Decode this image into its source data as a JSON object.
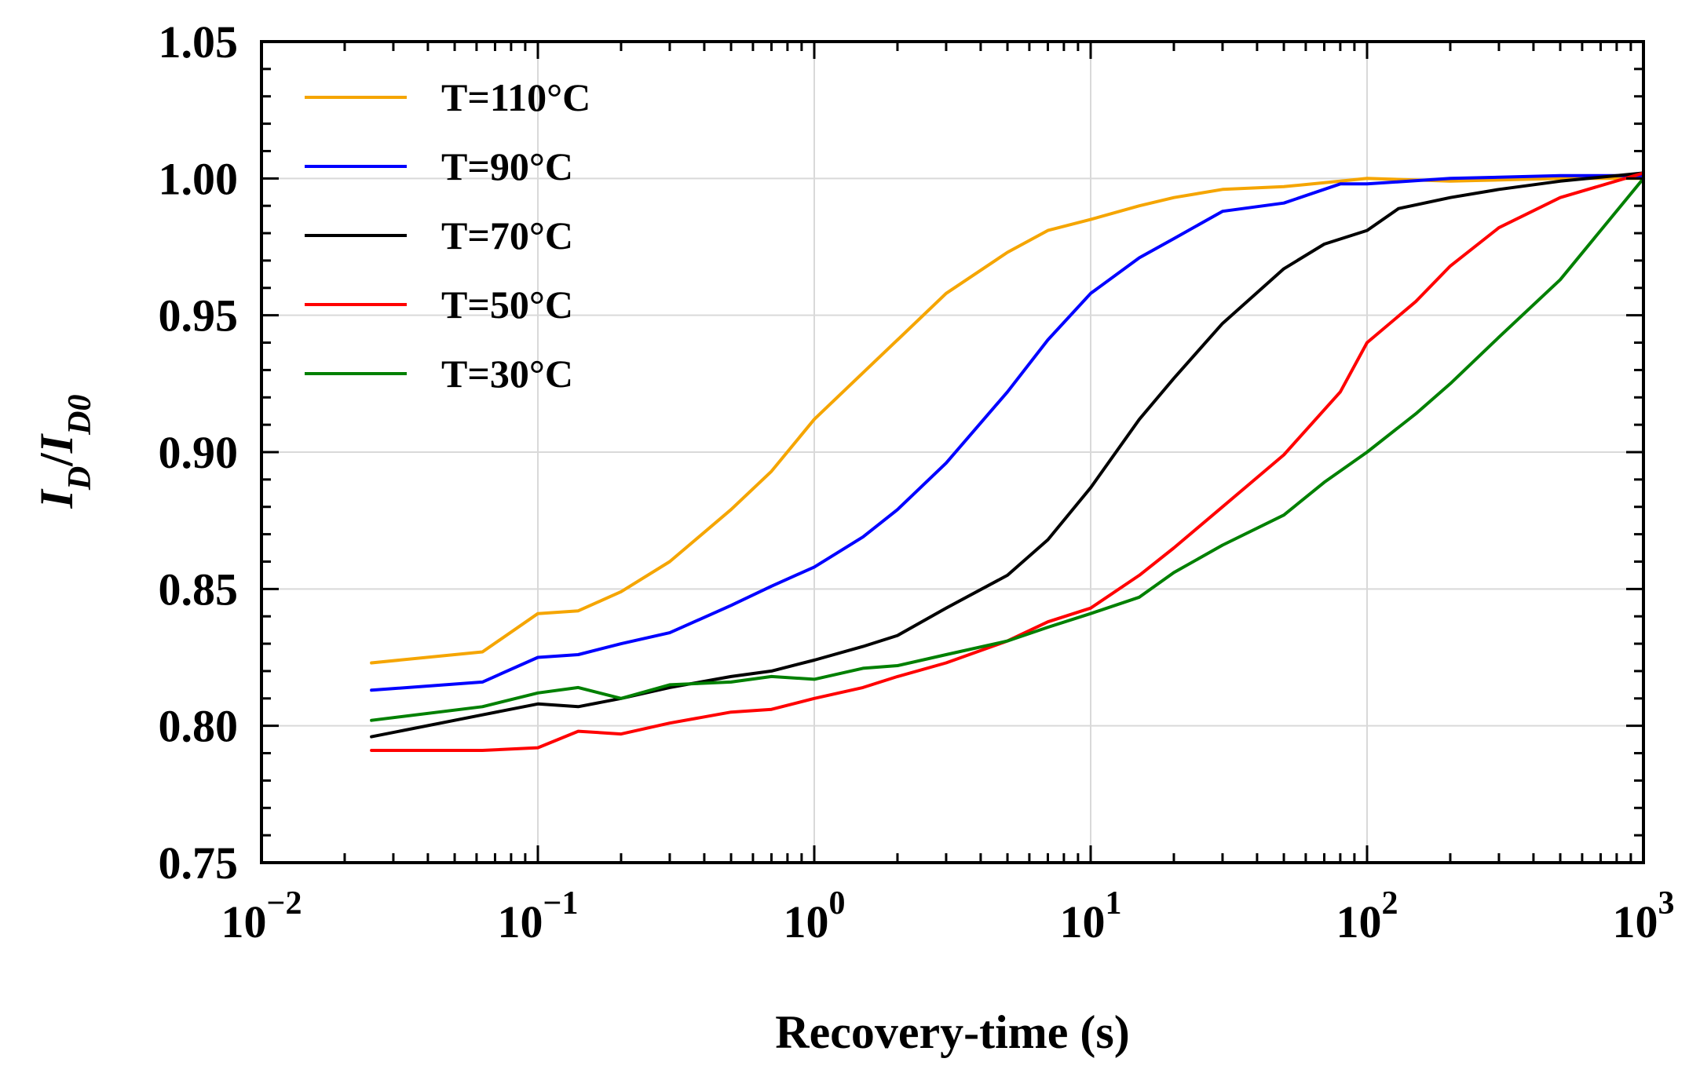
{
  "chart_data": {
    "type": "line",
    "xlabel": "Recovery-time (s)",
    "ylabel": {
      "base": "I",
      "sub": "D",
      "sep": "/",
      "base2": "I",
      "sub2": "D0"
    },
    "xscale": "log",
    "xlim": [
      0.01,
      1000
    ],
    "ylim": [
      0.75,
      1.05
    ],
    "grid": true,
    "legend_position": "top-left",
    "x_ticks": [
      {
        "base": "10",
        "exp": "−2"
      },
      {
        "base": "10",
        "exp": "−1"
      },
      {
        "base": "10",
        "exp": "0"
      },
      {
        "base": "10",
        "exp": "1"
      },
      {
        "base": "10",
        "exp": "2"
      },
      {
        "base": "10",
        "exp": "3"
      }
    ],
    "x_tick_values": [
      0.01,
      0.1,
      1,
      10,
      100,
      1000
    ],
    "y_ticks": [
      "0.75",
      "0.80",
      "0.85",
      "0.90",
      "0.95",
      "1.00",
      "1.05"
    ],
    "y_tick_values": [
      0.75,
      0.8,
      0.85,
      0.9,
      0.95,
      1.0,
      1.05
    ],
    "series": [
      {
        "name": "T=110°C",
        "color": "#f5a500",
        "x": [
          0.025,
          0.063,
          0.1,
          0.14,
          0.2,
          0.3,
          0.5,
          0.7,
          1.0,
          1.5,
          2,
          3,
          5,
          7,
          10,
          15,
          20,
          30,
          50,
          80,
          100,
          200,
          500,
          1000
        ],
        "y": [
          0.823,
          0.827,
          0.841,
          0.842,
          0.849,
          0.86,
          0.879,
          0.893,
          0.912,
          0.929,
          0.941,
          0.958,
          0.973,
          0.981,
          0.985,
          0.99,
          0.993,
          0.996,
          0.997,
          0.999,
          1.0,
          0.999,
          1.0,
          1.0
        ]
      },
      {
        "name": "T=90°C",
        "color": "#0000ff",
        "x": [
          0.025,
          0.063,
          0.1,
          0.14,
          0.2,
          0.3,
          0.5,
          0.7,
          1.0,
          1.5,
          2,
          3,
          5,
          7,
          10,
          15,
          20,
          30,
          50,
          80,
          100,
          200,
          500,
          1000
        ],
        "y": [
          0.813,
          0.816,
          0.825,
          0.826,
          0.83,
          0.834,
          0.844,
          0.851,
          0.858,
          0.869,
          0.879,
          0.896,
          0.922,
          0.941,
          0.958,
          0.971,
          0.978,
          0.988,
          0.991,
          0.998,
          0.998,
          1.0,
          1.001,
          1.001
        ]
      },
      {
        "name": "T=70°C",
        "color": "#000000",
        "x": [
          0.025,
          0.063,
          0.1,
          0.14,
          0.2,
          0.3,
          0.5,
          0.7,
          1.0,
          1.5,
          2,
          3,
          5,
          7,
          10,
          15,
          20,
          30,
          50,
          70,
          100,
          130,
          200,
          300,
          500,
          1000
        ],
        "y": [
          0.796,
          0.804,
          0.808,
          0.807,
          0.81,
          0.814,
          0.818,
          0.82,
          0.824,
          0.829,
          0.833,
          0.843,
          0.855,
          0.868,
          0.887,
          0.912,
          0.927,
          0.947,
          0.967,
          0.976,
          0.981,
          0.989,
          0.993,
          0.996,
          0.999,
          1.002
        ]
      },
      {
        "name": "T=50°C",
        "color": "#ff0000",
        "x": [
          0.025,
          0.063,
          0.1,
          0.14,
          0.2,
          0.3,
          0.5,
          0.7,
          1.0,
          1.5,
          2,
          3,
          5,
          7,
          10,
          15,
          20,
          30,
          50,
          80,
          100,
          150,
          200,
          300,
          500,
          1000
        ],
        "y": [
          0.791,
          0.791,
          0.792,
          0.798,
          0.797,
          0.801,
          0.805,
          0.806,
          0.81,
          0.814,
          0.818,
          0.823,
          0.831,
          0.838,
          0.843,
          0.855,
          0.865,
          0.88,
          0.899,
          0.922,
          0.94,
          0.955,
          0.968,
          0.982,
          0.993,
          1.002
        ]
      },
      {
        "name": "T=30°C",
        "color": "#008000",
        "x": [
          0.025,
          0.063,
          0.1,
          0.14,
          0.2,
          0.3,
          0.5,
          0.7,
          1.0,
          1.5,
          2,
          3,
          5,
          7,
          10,
          15,
          20,
          30,
          50,
          70,
          100,
          150,
          200,
          300,
          500,
          1000
        ],
        "y": [
          0.802,
          0.807,
          0.812,
          0.814,
          0.81,
          0.815,
          0.816,
          0.818,
          0.817,
          0.821,
          0.822,
          0.826,
          0.831,
          0.836,
          0.841,
          0.847,
          0.856,
          0.866,
          0.877,
          0.889,
          0.9,
          0.914,
          0.925,
          0.942,
          0.963,
          1.0
        ]
      }
    ]
  }
}
